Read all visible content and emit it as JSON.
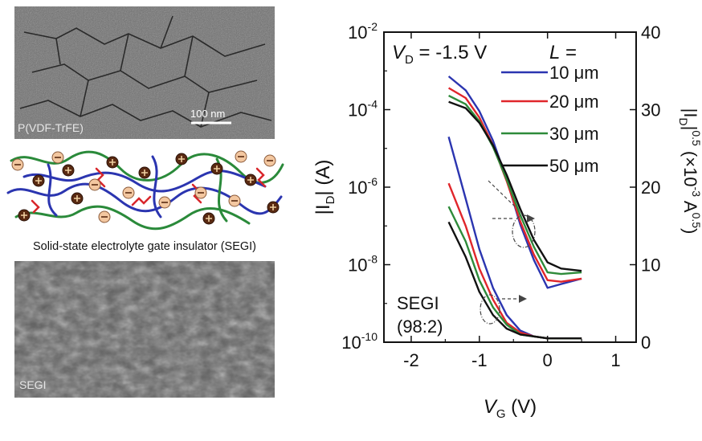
{
  "panel_left": {
    "sem_top_label": "P(VDF-TrFE)",
    "scale_bar_label": "100 nm",
    "schematic_caption": "Solid-state electrolyte gate insulator (SEGI)",
    "sem_bottom_label": "SEGI"
  },
  "chart_data": {
    "type": "line",
    "xlabel": "V_G (V)",
    "ylabel_left": "|I_D| (A)",
    "ylabel_right": "|I_D|^0.5 (×10^-3 A^0.5)",
    "xlim": [
      -2.4,
      1.3
    ],
    "ylim_left_log10": [
      -10,
      -2
    ],
    "ylim_right": [
      0,
      40
    ],
    "xticks": [
      -2,
      -1,
      0,
      1
    ],
    "yticks_left_exp": [
      -10,
      -8,
      -6,
      -4,
      -2
    ],
    "yticks_right": [
      0,
      10,
      20,
      30,
      40
    ],
    "annotations": {
      "vd": "V_D = -1.5 V",
      "l_header": "L =",
      "segi": "SEGI",
      "ratio": "(98:2)"
    },
    "series": [
      {
        "name": "10 μm",
        "color": "#2b35b0",
        "log": {
          "x": [
            -1.45,
            -1.2,
            -1.0,
            -0.8,
            -0.6,
            -0.4,
            -0.2,
            0.0,
            0.2,
            0.5
          ],
          "y": [
            -4.7,
            -6.3,
            -7.6,
            -8.6,
            -9.3,
            -9.7,
            -9.85,
            -9.9,
            -9.9,
            -9.9
          ]
        },
        "sqrt": {
          "x": [
            -1.45,
            -1.2,
            -1.0,
            -0.8,
            -0.6,
            -0.4,
            -0.2,
            0.0,
            0.2,
            0.5
          ],
          "y": [
            34.3,
            32.5,
            29.8,
            26.0,
            21.0,
            15.2,
            10.6,
            7.0,
            7.5,
            8.2
          ]
        }
      },
      {
        "name": "20 μm",
        "color": "#e0262b",
        "log": {
          "x": [
            -1.45,
            -1.2,
            -1.0,
            -0.8,
            -0.6,
            -0.4,
            -0.2,
            0.0,
            0.2,
            0.5
          ],
          "y": [
            -5.9,
            -7.0,
            -8.1,
            -8.9,
            -9.5,
            -9.75,
            -9.85,
            -9.9,
            -9.9,
            -9.9
          ]
        },
        "sqrt": {
          "x": [
            -1.45,
            -1.2,
            -1.0,
            -0.8,
            -0.6,
            -0.4,
            -0.2,
            0.0,
            0.2,
            0.5
          ],
          "y": [
            32.8,
            31.5,
            29.0,
            25.4,
            20.8,
            15.6,
            11.3,
            8.0,
            7.8,
            8.2
          ]
        }
      },
      {
        "name": "30 μm",
        "color": "#2e8b3a",
        "log": {
          "x": [
            -1.45,
            -1.2,
            -1.0,
            -0.8,
            -0.6,
            -0.4,
            -0.2,
            0.0,
            0.2,
            0.5
          ],
          "y": [
            -6.5,
            -7.4,
            -8.4,
            -9.1,
            -9.55,
            -9.8,
            -9.85,
            -9.9,
            -9.9,
            -9.9
          ]
        },
        "sqrt": {
          "x": [
            -1.45,
            -1.2,
            -1.0,
            -0.8,
            -0.6,
            -0.4,
            -0.2,
            0.0,
            0.2,
            0.5
          ],
          "y": [
            31.8,
            30.7,
            28.5,
            25.2,
            21.0,
            16.4,
            12.3,
            9.0,
            8.8,
            9.0
          ]
        }
      },
      {
        "name": "50 μm",
        "color": "#111111",
        "log": {
          "x": [
            -1.45,
            -1.2,
            -1.0,
            -0.8,
            -0.6,
            -0.4,
            -0.2,
            0.0,
            0.2,
            0.5
          ],
          "y": [
            -6.9,
            -7.8,
            -8.7,
            -9.3,
            -9.65,
            -9.8,
            -9.85,
            -9.9,
            -9.9,
            -9.9
          ]
        },
        "sqrt": {
          "x": [
            -1.45,
            -1.2,
            -1.0,
            -0.8,
            -0.6,
            -0.4,
            -0.2,
            0.0,
            0.2,
            0.5
          ],
          "y": [
            31.0,
            30.2,
            28.3,
            25.4,
            21.6,
            17.2,
            13.2,
            10.3,
            9.5,
            9.2
          ]
        }
      }
    ]
  }
}
